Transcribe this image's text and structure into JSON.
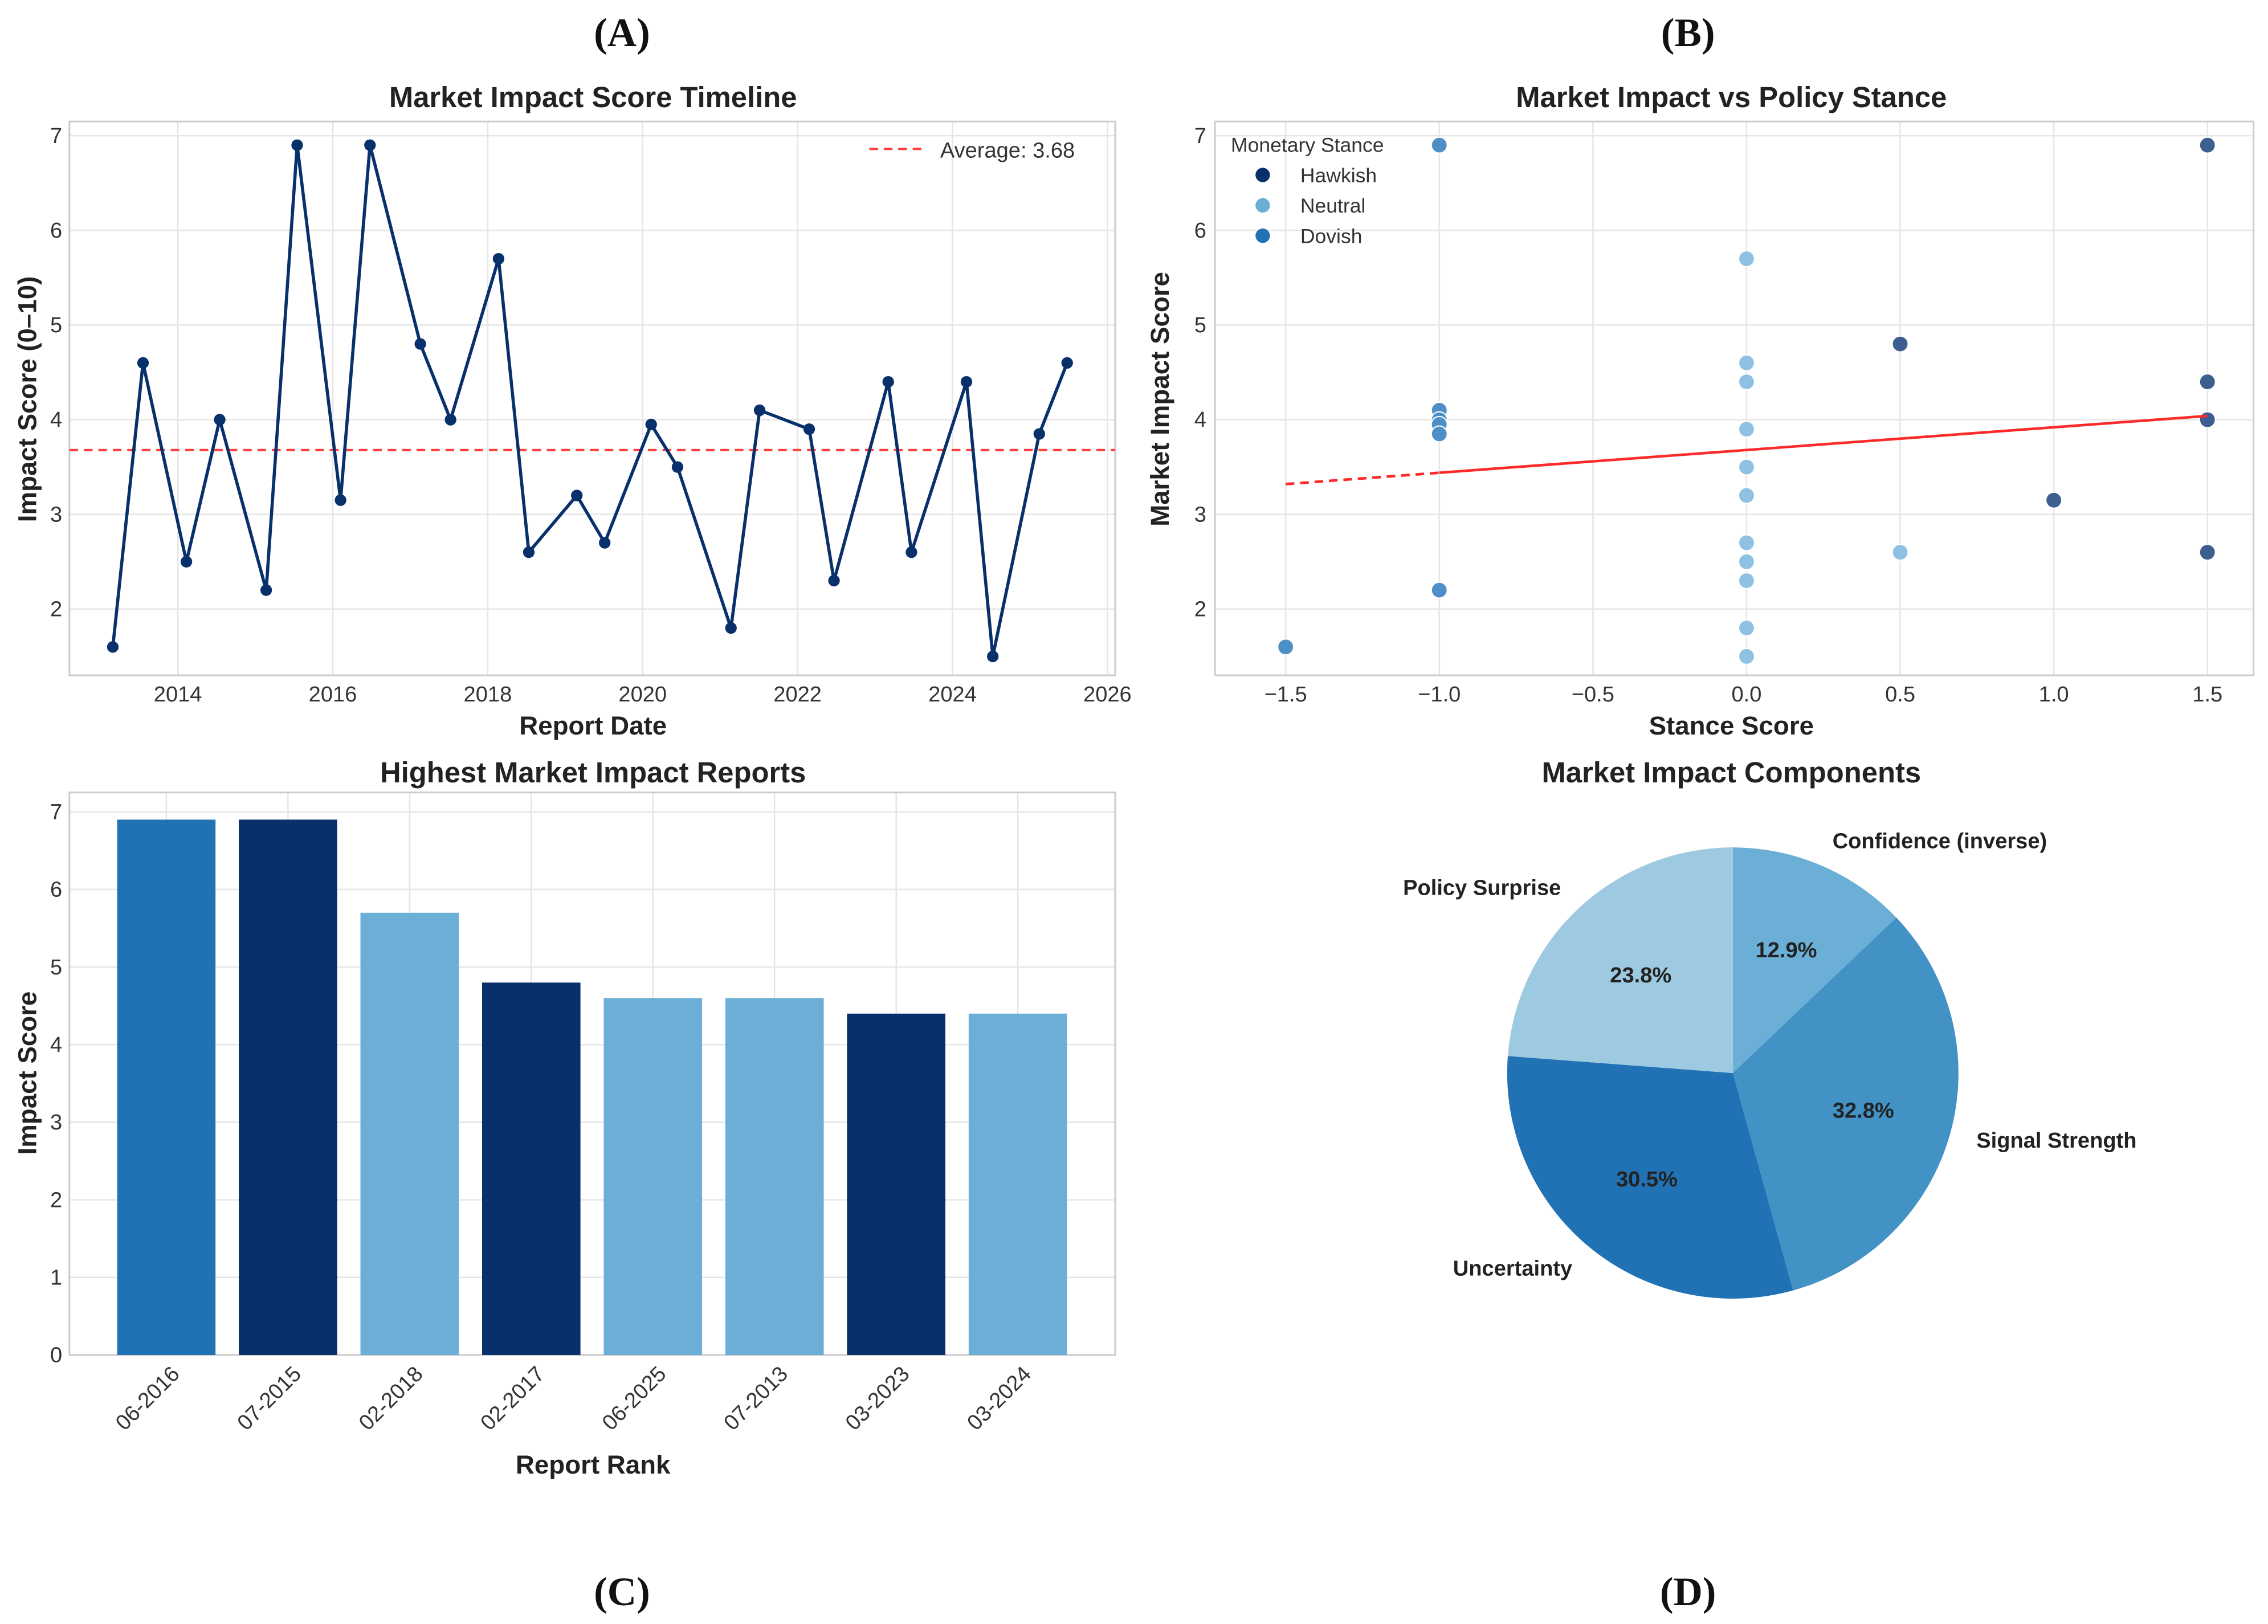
{
  "panel_labels": [
    "(A)",
    "(B)",
    "(C)",
    "(D)"
  ],
  "chart_data": [
    {
      "type": "line",
      "title": "Market Impact Score Timeline",
      "xlabel": "Report Date",
      "ylabel": "Impact Score (0–10)",
      "xlim": [
        2012.6,
        2026.1
      ],
      "ylim": [
        1.3,
        7.15
      ],
      "xticks": [
        2014,
        2016,
        2018,
        2020,
        2022,
        2024,
        2026
      ],
      "yticks": [
        2,
        3,
        4,
        5,
        6,
        7
      ],
      "grid": true,
      "line_color": "#08306b",
      "x": [
        2013.16,
        2013.55,
        2014.11,
        2014.54,
        2015.14,
        2015.54,
        2016.1,
        2016.48,
        2017.13,
        2017.52,
        2018.14,
        2018.53,
        2019.15,
        2019.51,
        2020.11,
        2020.45,
        2021.14,
        2021.51,
        2022.15,
        2022.47,
        2023.17,
        2023.47,
        2024.18,
        2024.52,
        2025.12,
        2025.48
      ],
      "y": [
        1.6,
        4.6,
        2.5,
        4.0,
        2.2,
        6.9,
        3.15,
        6.9,
        4.8,
        4.0,
        5.7,
        2.6,
        3.2,
        2.7,
        3.95,
        3.5,
        1.8,
        4.1,
        3.9,
        2.3,
        4.4,
        2.6,
        4.4,
        1.5,
        3.85,
        4.6
      ],
      "average": 3.68,
      "average_color": "#ff3b3b",
      "legend": {
        "label": "Average: 3.68",
        "placement": "top-right"
      }
    },
    {
      "type": "scatter",
      "title": "Market Impact vs Policy Stance",
      "xlabel": "Stance Score",
      "ylabel": "Market Impact Score",
      "xlim": [
        -1.73,
        1.65
      ],
      "ylim": [
        1.3,
        7.15
      ],
      "xticks": [
        -1.5,
        -1.0,
        -0.5,
        0.0,
        0.5,
        1.0,
        1.5
      ],
      "xtick_labels": [
        "−1.5",
        "−1.0",
        "−0.5",
        "0.0",
        "0.5",
        "1.0",
        "1.5"
      ],
      "yticks": [
        2,
        3,
        4,
        5,
        6,
        7
      ],
      "grid": true,
      "legend": {
        "title": "Monetary Stance",
        "placement": "top-left"
      },
      "series": [
        {
          "name": "Hawkish",
          "color": "#08306b",
          "point_color": "#3d5f90",
          "x": [
            1.5,
            0.5,
            1.5,
            1.5,
            1.0,
            1.5
          ],
          "y": [
            6.9,
            4.8,
            4.4,
            4.0,
            3.15,
            2.6
          ]
        },
        {
          "name": "Neutral",
          "color": "#6baed6",
          "point_color": "#8fc2e2",
          "x": [
            0,
            0,
            0,
            0,
            0,
            0,
            0,
            0,
            0,
            0,
            0,
            0.5
          ],
          "y": [
            5.7,
            4.6,
            4.4,
            3.9,
            3.5,
            3.2,
            2.7,
            2.5,
            2.3,
            1.8,
            1.5,
            2.6
          ]
        },
        {
          "name": "Dovish",
          "color": "#2171b5",
          "point_color": "#4f8fc7",
          "x": [
            -1,
            -1,
            -1,
            -1,
            -1,
            -1,
            -1.5
          ],
          "y": [
            6.9,
            4.1,
            4.0,
            3.95,
            3.85,
            2.2,
            1.6
          ]
        }
      ],
      "trend": {
        "x": [
          -1.5,
          1.5
        ],
        "y": [
          3.32,
          4.04
        ],
        "dashed_until": -1.0,
        "color": "#ff2a2a"
      }
    },
    {
      "type": "bar",
      "title": "Highest Market Impact Reports",
      "xlabel": "Report Rank",
      "ylabel": "Impact Score",
      "ylim": [
        0,
        7.25
      ],
      "yticks": [
        0,
        1,
        2,
        3,
        4,
        5,
        6,
        7
      ],
      "grid": true,
      "categories": [
        "06-2016",
        "07-2015",
        "02-2018",
        "02-2017",
        "06-2025",
        "07-2013",
        "03-2023",
        "03-2024"
      ],
      "values": [
        6.9,
        6.9,
        5.7,
        4.8,
        4.6,
        4.6,
        4.4,
        4.4
      ],
      "colors": [
        "#2171b5",
        "#08306b",
        "#6baed6",
        "#08306b",
        "#6baed6",
        "#6baed6",
        "#08306b",
        "#6baed6"
      ]
    },
    {
      "type": "pie",
      "title": "Market Impact Components",
      "slices": [
        {
          "label": "Confidence (inverse)",
          "value": 12.9,
          "pct": "12.9%",
          "color": "#6baed6"
        },
        {
          "label": "Signal Strength",
          "value": 32.8,
          "pct": "32.8%",
          "color": "#4292c6"
        },
        {
          "label": "Uncertainty",
          "value": 30.5,
          "pct": "30.5%",
          "color": "#2171b5"
        },
        {
          "label": "Policy Surprise",
          "value": 23.8,
          "pct": "23.8%",
          "color": "#9ecae1"
        }
      ]
    }
  ]
}
